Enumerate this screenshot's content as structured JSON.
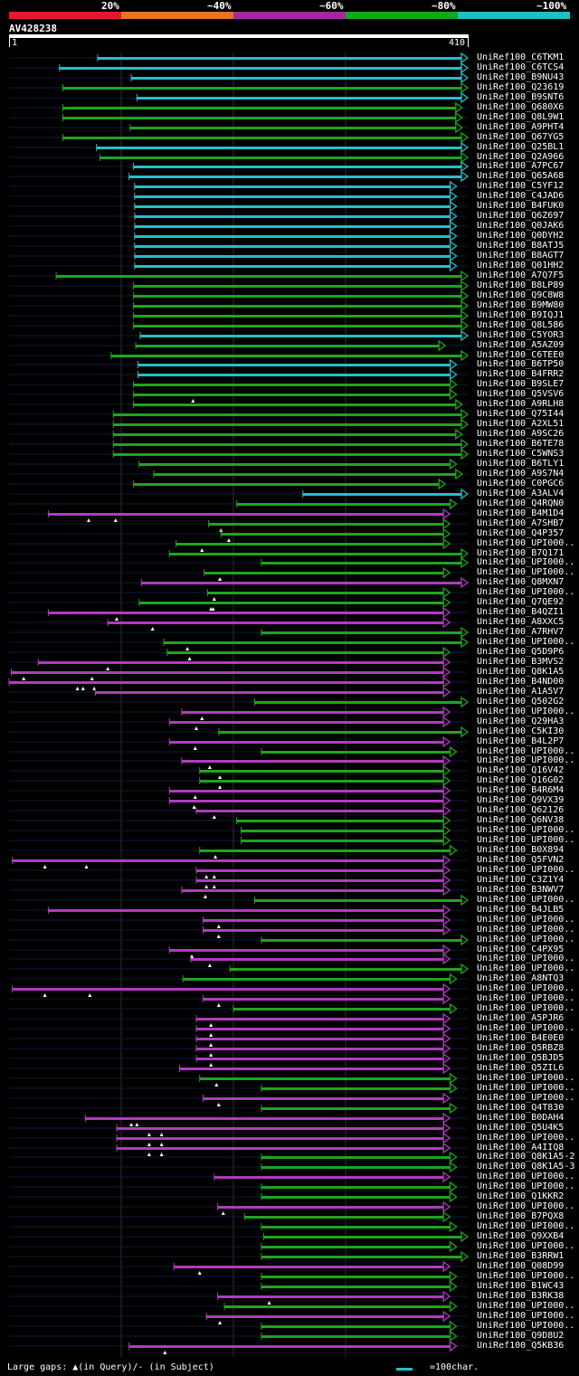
{
  "legend": {
    "labels": [
      "20%",
      "~40%",
      "~60%",
      "~80%",
      "~100%"
    ],
    "colors": [
      "#e8162e",
      "#e07626",
      "#9c2aa0",
      "#15a81c",
      "#1ec0c8"
    ]
  },
  "query": {
    "id": "AV428238",
    "start_label": "1",
    "end_label": "410",
    "length": 410
  },
  "footer": {
    "gap_text": "Large gaps: ▲(in Query)/- (in Subject)",
    "scale_text": "=100char."
  },
  "colors": {
    "cyan": "#22c1c8",
    "green": "#1ea51e",
    "magenta": "#b03cc0",
    "track": "#0c1a3a"
  },
  "hits": [
    {
      "name": "UniRef100_C6TKM1",
      "color": "cyan",
      "start": 80,
      "end": 410,
      "gaps": []
    },
    {
      "name": "UniRef100_C6TCS4",
      "color": "cyan",
      "start": 46,
      "end": 410,
      "gaps": []
    },
    {
      "name": "UniRef100_B9NU43",
      "color": "cyan",
      "start": 110,
      "end": 410,
      "gaps": []
    },
    {
      "name": "UniRef100_Q23619",
      "color": "green",
      "start": 49,
      "end": 410,
      "gaps": []
    },
    {
      "name": "UniRef100_B9SNT6",
      "color": "cyan",
      "start": 115,
      "end": 410,
      "gaps": []
    },
    {
      "name": "UniRef100_Q680X6",
      "color": "green",
      "start": 49,
      "end": 405,
      "gaps": []
    },
    {
      "name": "UniRef100_Q8L9W1",
      "color": "green",
      "start": 49,
      "end": 405,
      "gaps": []
    },
    {
      "name": "UniRef100_A9PHT4",
      "color": "green",
      "start": 109,
      "end": 405,
      "gaps": []
    },
    {
      "name": "UniRef100_Q67YG5",
      "color": "green",
      "start": 49,
      "end": 410,
      "gaps": []
    },
    {
      "name": "UniRef100_Q25BL1",
      "color": "cyan",
      "start": 79,
      "end": 410,
      "gaps": []
    },
    {
      "name": "UniRef100_Q2A966",
      "color": "green",
      "start": 82,
      "end": 410,
      "gaps": []
    },
    {
      "name": "UniRef100_A7PC67",
      "color": "cyan",
      "start": 112,
      "end": 410,
      "gaps": []
    },
    {
      "name": "UniRef100_Q65A68",
      "color": "cyan",
      "start": 108,
      "end": 410,
      "gaps": []
    },
    {
      "name": "UniRef100_C5YF12",
      "color": "cyan",
      "start": 113,
      "end": 400,
      "gaps": []
    },
    {
      "name": "UniRef100_C4JAD6",
      "color": "cyan",
      "start": 113,
      "end": 400,
      "gaps": []
    },
    {
      "name": "UniRef100_B4FUK0",
      "color": "cyan",
      "start": 113,
      "end": 400,
      "gaps": []
    },
    {
      "name": "UniRef100_Q6Z697",
      "color": "cyan",
      "start": 113,
      "end": 400,
      "gaps": []
    },
    {
      "name": "UniRef100_Q0JAK6",
      "color": "cyan",
      "start": 113,
      "end": 400,
      "gaps": []
    },
    {
      "name": "UniRef100_Q0DYH2",
      "color": "cyan",
      "start": 113,
      "end": 400,
      "gaps": []
    },
    {
      "name": "UniRef100_B8ATJ5",
      "color": "cyan",
      "start": 113,
      "end": 400,
      "gaps": []
    },
    {
      "name": "UniRef100_B8AGT7",
      "color": "cyan",
      "start": 113,
      "end": 400,
      "gaps": []
    },
    {
      "name": "UniRef100_Q01HH2",
      "color": "cyan",
      "start": 113,
      "end": 400,
      "gaps": []
    },
    {
      "name": "UniRef100_A7Q7F5",
      "color": "green",
      "start": 43,
      "end": 410,
      "gaps": []
    },
    {
      "name": "UniRef100_B8LP89",
      "color": "green",
      "start": 112,
      "end": 410,
      "gaps": []
    },
    {
      "name": "UniRef100_Q9C8W8",
      "color": "green",
      "start": 112,
      "end": 410,
      "gaps": []
    },
    {
      "name": "UniRef100_B9MW80",
      "color": "green",
      "start": 112,
      "end": 410,
      "gaps": []
    },
    {
      "name": "UniRef100_B9IQJ1",
      "color": "green",
      "start": 112,
      "end": 410,
      "gaps": []
    },
    {
      "name": "UniRef100_Q8L586",
      "color": "green",
      "start": 112,
      "end": 410,
      "gaps": []
    },
    {
      "name": "UniRef100_C5YOR3",
      "color": "cyan",
      "start": 118,
      "end": 410,
      "gaps": []
    },
    {
      "name": "UniRef100_A5AZ09",
      "color": "green",
      "start": 114,
      "end": 390,
      "gaps": []
    },
    {
      "name": "UniRef100_C6TEE0",
      "color": "green",
      "start": 92,
      "end": 410,
      "gaps": []
    },
    {
      "name": "UniRef100_B6TP50",
      "color": "cyan",
      "start": 116,
      "end": 400,
      "gaps": []
    },
    {
      "name": "UniRef100_B4FRR2",
      "color": "cyan",
      "start": 116,
      "end": 400,
      "gaps": []
    },
    {
      "name": "UniRef100_B9SLE7",
      "color": "green",
      "start": 112,
      "end": 400,
      "gaps": []
    },
    {
      "name": "UniRef100_Q5VSV6",
      "color": "green",
      "start": 112,
      "end": 400,
      "gaps": [
        165
      ]
    },
    {
      "name": "UniRef100_A9RLH8",
      "color": "green",
      "start": 112,
      "end": 405,
      "gaps": []
    },
    {
      "name": "UniRef100_Q75I44",
      "color": "green",
      "start": 94,
      "end": 410,
      "gaps": []
    },
    {
      "name": "UniRef100_A2XL51",
      "color": "green",
      "start": 94,
      "end": 410,
      "gaps": []
    },
    {
      "name": "UniRef100_A9SC26",
      "color": "green",
      "start": 94,
      "end": 405,
      "gaps": []
    },
    {
      "name": "UniRef100_B6TE78",
      "color": "green",
      "start": 94,
      "end": 410,
      "gaps": []
    },
    {
      "name": "UniRef100_C5WNS3",
      "color": "green",
      "start": 94,
      "end": 410,
      "gaps": []
    },
    {
      "name": "UniRef100_B6TLY1",
      "color": "green",
      "start": 117,
      "end": 400,
      "gaps": []
    },
    {
      "name": "UniRef100_A9S7N4",
      "color": "green",
      "start": 130,
      "end": 405,
      "gaps": []
    },
    {
      "name": "UniRef100_C0PGC6",
      "color": "green",
      "start": 112,
      "end": 390,
      "gaps": []
    },
    {
      "name": "UniRef100_A3ALV4",
      "color": "cyan",
      "start": 263,
      "end": 410,
      "gaps": []
    },
    {
      "name": "UniRef100_Q4RQN0",
      "color": "green",
      "start": 204,
      "end": 400,
      "gaps": []
    },
    {
      "name": "UniRef100_B4M1D4",
      "color": "magenta",
      "start": 36,
      "end": 394,
      "gaps": [
        72,
        96
      ]
    },
    {
      "name": "UniRef100_A7SHB7",
      "color": "green",
      "start": 179,
      "end": 394,
      "gaps": [
        190
      ]
    },
    {
      "name": "UniRef100_Q4P357",
      "color": "green",
      "start": 190,
      "end": 394,
      "gaps": [
        197
      ]
    },
    {
      "name": "UniRef100_UPI000..",
      "color": "green",
      "start": 150,
      "end": 394,
      "gaps": [
        173
      ]
    },
    {
      "name": "UniRef100_B7Q171",
      "color": "green",
      "start": 144,
      "end": 410,
      "gaps": []
    },
    {
      "name": "UniRef100_UPI000..",
      "color": "green",
      "start": 226,
      "end": 410,
      "gaps": []
    },
    {
      "name": "UniRef100_UPI000..",
      "color": "green",
      "start": 175,
      "end": 394,
      "gaps": [
        189
      ]
    },
    {
      "name": "UniRef100_Q8MXN7",
      "color": "magenta",
      "start": 119,
      "end": 410,
      "gaps": []
    },
    {
      "name": "UniRef100_UPI000..",
      "color": "green",
      "start": 178,
      "end": 394,
      "gaps": [
        184
      ]
    },
    {
      "name": "UniRef100_Q7QE92",
      "color": "green",
      "start": 117,
      "end": 394,
      "gaps": [
        181,
        183
      ]
    },
    {
      "name": "UniRef100_B4QZI1",
      "color": "magenta",
      "start": 36,
      "end": 394,
      "gaps": [
        97
      ]
    },
    {
      "name": "UniRef100_A8XXC5",
      "color": "magenta",
      "start": 89,
      "end": 394,
      "gaps": [
        129
      ]
    },
    {
      "name": "UniRef100_A7RHV7",
      "color": "green",
      "start": 226,
      "end": 410,
      "gaps": []
    },
    {
      "name": "UniRef100_UPI000..",
      "color": "green",
      "start": 139,
      "end": 410,
      "gaps": [
        160
      ]
    },
    {
      "name": "UniRef100_Q5D9P6",
      "color": "green",
      "start": 142,
      "end": 394,
      "gaps": [
        162
      ]
    },
    {
      "name": "UniRef100_B3MVS2",
      "color": "magenta",
      "start": 27,
      "end": 394,
      "gaps": [
        89
      ]
    },
    {
      "name": "UniRef100_Q8K1A5",
      "color": "magenta",
      "start": 3,
      "end": 394,
      "gaps": [
        14,
        75
      ]
    },
    {
      "name": "UniRef100_B4ND00",
      "color": "magenta",
      "start": 1,
      "end": 394,
      "gaps": [
        62,
        67,
        77
      ]
    },
    {
      "name": "UniRef100_A1A5V7",
      "color": "magenta",
      "start": 78,
      "end": 394,
      "gaps": []
    },
    {
      "name": "UniRef100_Q502G2",
      "color": "green",
      "start": 220,
      "end": 410,
      "gaps": []
    },
    {
      "name": "UniRef100_UPI000..",
      "color": "magenta",
      "start": 155,
      "end": 394,
      "gaps": [
        173
      ]
    },
    {
      "name": "UniRef100_Q29HA3",
      "color": "magenta",
      "start": 144,
      "end": 394,
      "gaps": [
        168
      ]
    },
    {
      "name": "UniRef100_C5KI30",
      "color": "green",
      "start": 188,
      "end": 410,
      "gaps": []
    },
    {
      "name": "UniRef100_B4L2P7",
      "color": "magenta",
      "start": 144,
      "end": 394,
      "gaps": [
        167
      ]
    },
    {
      "name": "UniRef100_UPI000..",
      "color": "green",
      "start": 226,
      "end": 400,
      "gaps": []
    },
    {
      "name": "UniRef100_UPI000..",
      "color": "magenta",
      "start": 155,
      "end": 394,
      "gaps": [
        180
      ]
    },
    {
      "name": "UniRef100_Q16V42",
      "color": "green",
      "start": 171,
      "end": 394,
      "gaps": [
        189
      ]
    },
    {
      "name": "UniRef100_Q16G02",
      "color": "green",
      "start": 171,
      "end": 394,
      "gaps": [
        189
      ]
    },
    {
      "name": "UniRef100_B4R6M4",
      "color": "magenta",
      "start": 144,
      "end": 394,
      "gaps": [
        167
      ]
    },
    {
      "name": "UniRef100_Q9VX39",
      "color": "magenta",
      "start": 144,
      "end": 394,
      "gaps": [
        166
      ]
    },
    {
      "name": "UniRef100_Q62126",
      "color": "magenta",
      "start": 168,
      "end": 394,
      "gaps": [
        184
      ]
    },
    {
      "name": "UniRef100_Q6NV38",
      "color": "green",
      "start": 204,
      "end": 394,
      "gaps": []
    },
    {
      "name": "UniRef100_UPI000..",
      "color": "green",
      "start": 208,
      "end": 394,
      "gaps": []
    },
    {
      "name": "UniRef100_UPI000..",
      "color": "green",
      "start": 208,
      "end": 394,
      "gaps": []
    },
    {
      "name": "UniRef100_B0X894",
      "color": "green",
      "start": 171,
      "end": 400,
      "gaps": [
        185
      ]
    },
    {
      "name": "UniRef100_Q5FVN2",
      "color": "magenta",
      "start": 4,
      "end": 394,
      "gaps": [
        33,
        70
      ]
    },
    {
      "name": "UniRef100_UPI000..",
      "color": "magenta",
      "start": 168,
      "end": 394,
      "gaps": [
        177,
        184
      ]
    },
    {
      "name": "UniRef100_C3Z1Y4",
      "color": "magenta",
      "start": 168,
      "end": 394,
      "gaps": [
        177,
        184
      ]
    },
    {
      "name": "UniRef100_B3NWV7",
      "color": "magenta",
      "start": 155,
      "end": 394,
      "gaps": [
        176
      ]
    },
    {
      "name": "UniRef100_UPI000..",
      "color": "green",
      "start": 220,
      "end": 410,
      "gaps": []
    },
    {
      "name": "UniRef100_B4JLB5",
      "color": "magenta",
      "start": 36,
      "end": 394,
      "gaps": []
    },
    {
      "name": "UniRef100_UPI000..",
      "color": "magenta",
      "start": 174,
      "end": 394,
      "gaps": [
        188
      ]
    },
    {
      "name": "UniRef100_UPI000..",
      "color": "magenta",
      "start": 174,
      "end": 394,
      "gaps": [
        188
      ]
    },
    {
      "name": "UniRef100_UPI000..",
      "color": "green",
      "start": 226,
      "end": 410,
      "gaps": []
    },
    {
      "name": "UniRef100_C4PX95",
      "color": "magenta",
      "start": 144,
      "end": 394,
      "gaps": [
        164
      ]
    },
    {
      "name": "UniRef100_UPI000..",
      "color": "magenta",
      "start": 163,
      "end": 394,
      "gaps": [
        180
      ]
    },
    {
      "name": "UniRef100_UPI000..",
      "color": "green",
      "start": 198,
      "end": 410,
      "gaps": []
    },
    {
      "name": "UniRef100_A8NTQ3",
      "color": "green",
      "start": 156,
      "end": 400,
      "gaps": []
    },
    {
      "name": "UniRef100_UPI000..",
      "color": "magenta",
      "start": 4,
      "end": 394,
      "gaps": [
        33,
        73
      ]
    },
    {
      "name": "UniRef100_UPI000..",
      "color": "magenta",
      "start": 174,
      "end": 394,
      "gaps": [
        188
      ]
    },
    {
      "name": "UniRef100_UPI000..",
      "color": "green",
      "start": 201,
      "end": 400,
      "gaps": []
    },
    {
      "name": "UniRef100_A5PJR6",
      "color": "magenta",
      "start": 168,
      "end": 394,
      "gaps": [
        181
      ]
    },
    {
      "name": "UniRef100_UPI000..",
      "color": "magenta",
      "start": 168,
      "end": 394,
      "gaps": [
        181
      ]
    },
    {
      "name": "UniRef100_B4E0E0",
      "color": "magenta",
      "start": 168,
      "end": 394,
      "gaps": [
        181
      ]
    },
    {
      "name": "UniRef100_Q5RBZ8",
      "color": "magenta",
      "start": 168,
      "end": 394,
      "gaps": [
        181
      ]
    },
    {
      "name": "UniRef100_Q5BJD5",
      "color": "magenta",
      "start": 168,
      "end": 394,
      "gaps": [
        181
      ]
    },
    {
      "name": "UniRef100_Q5ZIL6",
      "color": "magenta",
      "start": 153,
      "end": 394,
      "gaps": []
    },
    {
      "name": "UniRef100_UPI000..",
      "color": "green",
      "start": 171,
      "end": 400,
      "gaps": [
        186
      ]
    },
    {
      "name": "UniRef100_UPI000..",
      "color": "green",
      "start": 226,
      "end": 400,
      "gaps": []
    },
    {
      "name": "UniRef100_UPI000..",
      "color": "magenta",
      "start": 174,
      "end": 394,
      "gaps": [
        188
      ]
    },
    {
      "name": "UniRef100_Q4T830",
      "color": "green",
      "start": 226,
      "end": 400,
      "gaps": []
    },
    {
      "name": "UniRef100_B0DAH4",
      "color": "magenta",
      "start": 69,
      "end": 394,
      "gaps": [
        110,
        115
      ]
    },
    {
      "name": "UniRef100_Q5U4K5",
      "color": "magenta",
      "start": 97,
      "end": 394,
      "gaps": [
        126,
        137
      ]
    },
    {
      "name": "UniRef100_UPI000..",
      "color": "magenta",
      "start": 97,
      "end": 394,
      "gaps": [
        126,
        137
      ]
    },
    {
      "name": "UniRef100_A4IIQ8",
      "color": "magenta",
      "start": 97,
      "end": 394,
      "gaps": [
        126,
        137
      ]
    },
    {
      "name": "UniRef100_Q8K1A5-2",
      "color": "green",
      "start": 226,
      "end": 400,
      "gaps": []
    },
    {
      "name": "UniRef100_Q8K1A5-3",
      "color": "green",
      "start": 226,
      "end": 400,
      "gaps": []
    },
    {
      "name": "UniRef100_UPI000..",
      "color": "magenta",
      "start": 184,
      "end": 394,
      "gaps": []
    },
    {
      "name": "UniRef100_UPI000..",
      "color": "green",
      "start": 226,
      "end": 400,
      "gaps": []
    },
    {
      "name": "UniRef100_Q1KKR2",
      "color": "green",
      "start": 226,
      "end": 400,
      "gaps": []
    },
    {
      "name": "UniRef100_UPI000..",
      "color": "magenta",
      "start": 187,
      "end": 394,
      "gaps": [
        192
      ]
    },
    {
      "name": "UniRef100_B7PQX8",
      "color": "green",
      "start": 211,
      "end": 394,
      "gaps": []
    },
    {
      "name": "UniRef100_UPI000..",
      "color": "green",
      "start": 226,
      "end": 400,
      "gaps": []
    },
    {
      "name": "UniRef100_Q9XXB4",
      "color": "green",
      "start": 228,
      "end": 410,
      "gaps": []
    },
    {
      "name": "UniRef100_UPI000..",
      "color": "green",
      "start": 226,
      "end": 400,
      "gaps": []
    },
    {
      "name": "UniRef100_B3RRW1",
      "color": "green",
      "start": 226,
      "end": 410,
      "gaps": []
    },
    {
      "name": "UniRef100_Q08D99",
      "color": "magenta",
      "start": 148,
      "end": 394,
      "gaps": [
        171
      ]
    },
    {
      "name": "UniRef100_UPI000..",
      "color": "green",
      "start": 226,
      "end": 400,
      "gaps": []
    },
    {
      "name": "UniRef100_B1WC43",
      "color": "green",
      "start": 226,
      "end": 400,
      "gaps": []
    },
    {
      "name": "UniRef100_B3RK38",
      "color": "magenta",
      "start": 187,
      "end": 394,
      "gaps": [
        233
      ]
    },
    {
      "name": "UniRef100_UPI000..",
      "color": "green",
      "start": 193,
      "end": 400,
      "gaps": []
    },
    {
      "name": "UniRef100_UPI000..",
      "color": "magenta",
      "start": 177,
      "end": 394,
      "gaps": [
        189
      ]
    },
    {
      "name": "UniRef100_UPI000..",
      "color": "green",
      "start": 226,
      "end": 400,
      "gaps": []
    },
    {
      "name": "UniRef100_Q9D8U2",
      "color": "green",
      "start": 226,
      "end": 400,
      "gaps": []
    },
    {
      "name": "UniRef100_Q5KB36",
      "color": "magenta",
      "start": 108,
      "end": 400,
      "gaps": [
        140
      ]
    }
  ]
}
